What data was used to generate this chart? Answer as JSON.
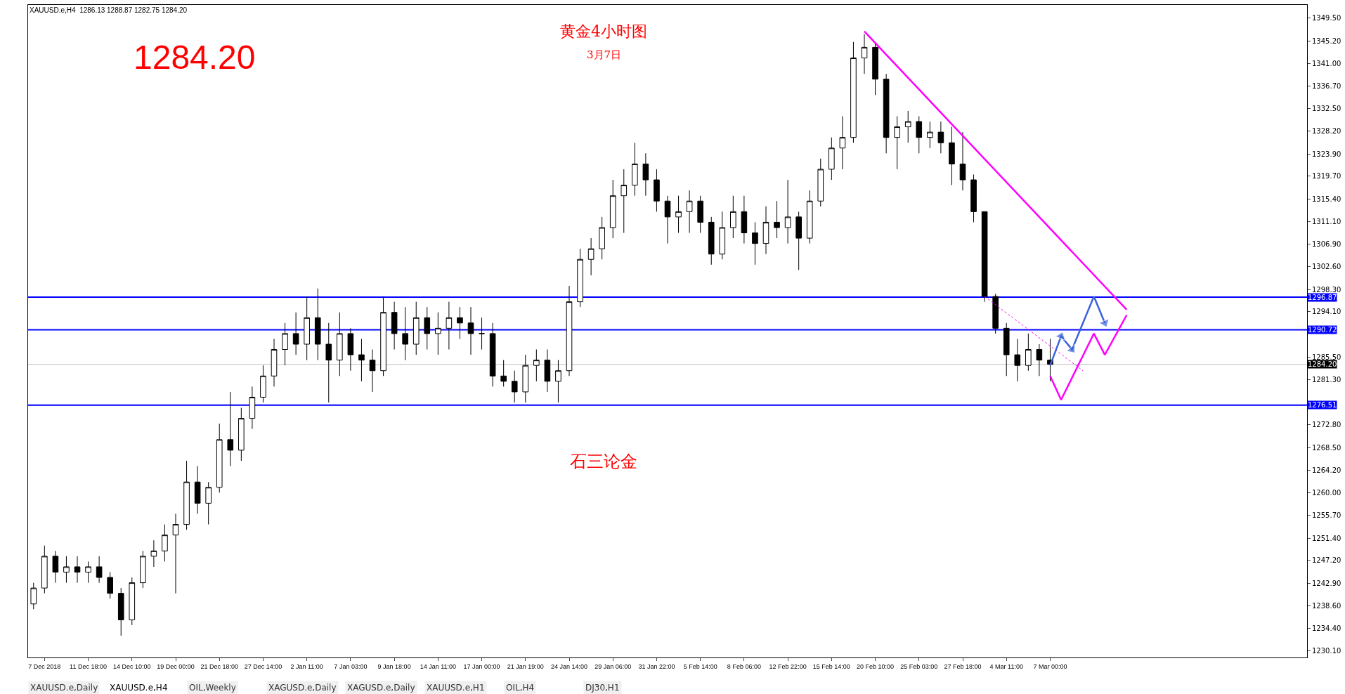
{
  "chart_data": {
    "type": "candlestick",
    "title": "黄金4小时图",
    "subtitle": "3月7日",
    "annotations": [
      "XAUUSD.e,H4  1286.13 1288.87 1282.75 1284.20",
      "1284.20",
      "石三论金",
      "XAUUSD.e,Daily",
      "XAUUSD.e,H4",
      "OIL,Weekly",
      "XAGUSD.e,Daily",
      "XAGUSD.e,Daily",
      "XAUUSD.e,H1",
      "OIL,H4",
      "DJ30,H1"
    ],
    "categories": [
      null,
      "7 Dec 2018",
      null,
      null,
      null,
      "11 Dec 18:00",
      null,
      null,
      null,
      "14 Dec 10:00",
      null,
      null,
      null,
      "19 Dec 00:00",
      null,
      null,
      null,
      "21 Dec 18:00",
      null,
      null,
      null,
      "27 Dec 14:00",
      null,
      null,
      null,
      "2 Jan 11:00",
      null,
      null,
      null,
      "7 Jan 03:00",
      null,
      null,
      null,
      "9 Jan 18:00",
      null,
      null,
      null,
      "14 Jan 11:00",
      null,
      null,
      null,
      "17 Jan 00:00",
      null,
      null,
      null,
      "21 Jan 19:00",
      null,
      null,
      null,
      "24 Jan 14:00",
      null,
      null,
      null,
      "29 Jan 06:00",
      null,
      null,
      null,
      "31 Jan 22:00",
      null,
      null,
      null,
      "5 Feb 14:00",
      null,
      null,
      null,
      "8 Feb 06:00",
      null,
      null,
      null,
      "12 Feb 22:00",
      null,
      null,
      null,
      "15 Feb 14:00",
      null,
      null,
      null,
      "20 Feb 10:00",
      null,
      null,
      null,
      "25 Feb 03:00",
      null,
      null,
      null,
      "27 Feb 18:00",
      null,
      null,
      null,
      "4 Mar 11:00",
      null,
      null,
      null,
      "7 Mar 00:00",
      null,
      null,
      null,
      null,
      null,
      null,
      null,
      null,
      null,
      null,
      null,
      null,
      null,
      null,
      null,
      null,
      null,
      null,
      null,
      null,
      null,
      null,
      null
    ],
    "ohlc": [
      [
        1239,
        1243,
        1238,
        1242
      ],
      [
        1242,
        1250,
        1241,
        1248
      ],
      [
        1248,
        1249,
        1243,
        1245
      ],
      [
        1245,
        1248,
        1243,
        1246
      ],
      [
        1246,
        1248,
        1243,
        1245
      ],
      [
        1245,
        1247,
        1243,
        1246
      ],
      [
        1246,
        1248,
        1243,
        1244
      ],
      [
        1244,
        1245,
        1240,
        1241
      ],
      [
        1241,
        1242,
        1233,
        1236
      ],
      [
        1236,
        1244,
        1235,
        1243
      ],
      [
        1243,
        1249,
        1242,
        1248
      ],
      [
        1248,
        1251,
        1246,
        1249
      ],
      [
        1249,
        1254,
        1247,
        1252
      ],
      [
        1252,
        1256,
        1241,
        1254
      ],
      [
        1254,
        1266,
        1253,
        1262
      ],
      [
        1262,
        1265,
        1256,
        1258
      ],
      [
        1258,
        1262,
        1254,
        1261
      ],
      [
        1261,
        1273,
        1260,
        1270
      ],
      [
        1270,
        1279,
        1265,
        1268
      ],
      [
        1268,
        1276,
        1266,
        1274
      ],
      [
        1274,
        1280,
        1272,
        1278
      ],
      [
        1278,
        1284,
        1277,
        1282
      ],
      [
        1282,
        1289,
        1280,
        1287
      ],
      [
        1287,
        1292,
        1284,
        1290
      ],
      [
        1290,
        1294,
        1286,
        1288
      ],
      [
        1288,
        1297,
        1285,
        1293
      ],
      [
        1293,
        1298.5,
        1285,
        1288
      ],
      [
        1288,
        1292,
        1277,
        1285
      ],
      [
        1285,
        1294,
        1282,
        1290
      ],
      [
        1290,
        1291,
        1283,
        1286
      ],
      [
        1286,
        1289,
        1281,
        1285
      ],
      [
        1285,
        1287,
        1279,
        1283
      ],
      [
        1283,
        1297,
        1282,
        1294
      ],
      [
        1294,
        1296,
        1287,
        1290
      ],
      [
        1290,
        1295,
        1285,
        1288
      ],
      [
        1288,
        1296,
        1286,
        1293
      ],
      [
        1293,
        1295,
        1287,
        1290
      ],
      [
        1290,
        1294,
        1286,
        1291
      ],
      [
        1291,
        1296,
        1287,
        1293
      ],
      [
        1293,
        1295,
        1289,
        1292
      ],
      [
        1292,
        1295,
        1286,
        1290
      ],
      [
        1290,
        1293,
        1287,
        1290
      ],
      [
        1290,
        1292,
        1280,
        1282
      ],
      [
        1282,
        1285,
        1280,
        1281
      ],
      [
        1281,
        1283,
        1277,
        1279
      ],
      [
        1279,
        1286,
        1277,
        1284
      ],
      [
        1284,
        1287,
        1281,
        1285
      ],
      [
        1285,
        1287,
        1279,
        1281
      ],
      [
        1281,
        1285,
        1277,
        1283
      ],
      [
        1283,
        1299,
        1282,
        1296
      ],
      [
        1296,
        1306,
        1295,
        1304
      ],
      [
        1304,
        1308,
        1301,
        1306
      ],
      [
        1306,
        1312,
        1304,
        1310
      ],
      [
        1310,
        1319,
        1308,
        1316
      ],
      [
        1316,
        1321,
        1309,
        1318
      ],
      [
        1318,
        1326,
        1316,
        1322
      ],
      [
        1322,
        1324,
        1316,
        1319
      ],
      [
        1319,
        1321,
        1313,
        1315
      ],
      [
        1315,
        1316,
        1307,
        1312
      ],
      [
        1312,
        1316,
        1309,
        1313
      ],
      [
        1313,
        1317,
        1309,
        1315
      ],
      [
        1315,
        1316,
        1309,
        1311
      ],
      [
        1311,
        1312,
        1303,
        1305
      ],
      [
        1305,
        1313,
        1304,
        1310
      ],
      [
        1310,
        1316,
        1308,
        1313
      ],
      [
        1313,
        1316,
        1307,
        1309
      ],
      [
        1309,
        1311,
        1303,
        1307
      ],
      [
        1307,
        1314,
        1305,
        1311
      ],
      [
        1311,
        1315,
        1308,
        1310
      ],
      [
        1310,
        1319,
        1307,
        1312
      ],
      [
        1312,
        1313,
        1302,
        1308
      ],
      [
        1308,
        1317,
        1307,
        1315
      ],
      [
        1315,
        1323,
        1314,
        1321
      ],
      [
        1321,
        1327,
        1319,
        1325
      ],
      [
        1325,
        1331,
        1321,
        1327
      ],
      [
        1327,
        1345,
        1326,
        1342
      ],
      [
        1342,
        1346.5,
        1339,
        1344
      ],
      [
        1344,
        1345,
        1335,
        1338
      ],
      [
        1338,
        1339,
        1324,
        1327
      ],
      [
        1327,
        1331,
        1321,
        1329
      ],
      [
        1329,
        1332,
        1326,
        1330
      ],
      [
        1330,
        1331,
        1324,
        1327
      ],
      [
        1327,
        1330,
        1325,
        1328
      ],
      [
        1328,
        1330,
        1324,
        1326
      ],
      [
        1326,
        1329,
        1318,
        1322
      ],
      [
        1322,
        1328,
        1317,
        1319
      ],
      [
        1319,
        1320,
        1311,
        1313
      ],
      [
        1313,
        1313,
        1296,
        1297
      ],
      [
        1297,
        1297.5,
        1290,
        1291
      ],
      [
        1291,
        1292,
        1282,
        1286
      ],
      [
        1286,
        1289,
        1281,
        1284
      ],
      [
        1284,
        1290,
        1283,
        1287
      ],
      [
        1287,
        1288,
        1282,
        1285
      ],
      [
        1285,
        1289,
        1281,
        1284.2
      ],
      null,
      null,
      null,
      null,
      null,
      null,
      null,
      null,
      null,
      null,
      null,
      null,
      null,
      null,
      null,
      null,
      null,
      null,
      null,
      null,
      null,
      null,
      null
    ],
    "series": [
      {
        "type": "line",
        "color": "#ff00ff",
        "marker": "none",
        "line_style": "solid",
        "values": [
          null,
          null,
          null,
          null,
          null,
          null,
          null,
          null,
          null,
          null,
          null,
          null,
          null,
          null,
          null,
          null,
          null,
          null,
          null,
          null,
          null,
          null,
          null,
          null,
          null,
          null,
          null,
          null,
          null,
          null,
          null,
          null,
          null,
          null,
          null,
          null,
          null,
          null,
          null,
          null,
          null,
          null,
          null,
          null,
          null,
          null,
          null,
          null,
          null,
          null,
          null,
          null,
          null,
          null,
          null,
          null,
          null,
          null,
          null,
          null,
          null,
          null,
          null,
          null,
          null,
          null,
          null,
          null,
          null,
          null,
          null,
          null,
          null,
          null,
          null,
          null,
          1347,
          null,
          null,
          null,
          null,
          null,
          null,
          null,
          null,
          null,
          null,
          null,
          null,
          null,
          null,
          null,
          null,
          null,
          null,
          null,
          null,
          null,
          null,
          null,
          1294.5,
          null,
          null,
          null,
          null,
          null,
          null,
          null,
          null,
          null,
          null,
          null,
          null,
          null,
          null,
          null,
          null
        ]
      },
      {
        "type": "line",
        "color": "#ff00ff",
        "marker": "none",
        "line_style": "dotted",
        "values": [
          null,
          null,
          null,
          null,
          null,
          null,
          null,
          null,
          null,
          null,
          null,
          null,
          null,
          null,
          null,
          null,
          null,
          null,
          null,
          null,
          null,
          null,
          null,
          null,
          null,
          null,
          null,
          null,
          null,
          null,
          null,
          null,
          null,
          null,
          null,
          null,
          null,
          null,
          null,
          null,
          null,
          null,
          null,
          null,
          null,
          null,
          null,
          null,
          null,
          null,
          null,
          null,
          null,
          null,
          null,
          null,
          null,
          null,
          null,
          null,
          null,
          null,
          null,
          null,
          null,
          null,
          null,
          null,
          null,
          null,
          null,
          null,
          null,
          null,
          null,
          null,
          null,
          null,
          null,
          null,
          null,
          null,
          null,
          null,
          null,
          null,
          null,
          1297,
          null,
          null,
          null,
          null,
          null,
          null,
          null,
          null,
          1283,
          null,
          null,
          null,
          null,
          null,
          null,
          null,
          null,
          null,
          null,
          null,
          null,
          null,
          null,
          null,
          null,
          null,
          null,
          null,
          null
        ]
      },
      {
        "type": "line",
        "color": "#3b63dd",
        "marker": "triangle",
        "line_style": "solid",
        "values": [
          null,
          null,
          null,
          null,
          null,
          null,
          null,
          null,
          null,
          null,
          null,
          null,
          null,
          null,
          null,
          null,
          null,
          null,
          null,
          null,
          null,
          null,
          null,
          null,
          null,
          null,
          null,
          null,
          null,
          null,
          null,
          null,
          null,
          null,
          null,
          null,
          null,
          null,
          null,
          null,
          null,
          null,
          null,
          null,
          null,
          null,
          null,
          null,
          null,
          null,
          null,
          null,
          null,
          null,
          null,
          null,
          null,
          null,
          null,
          null,
          null,
          null,
          null,
          null,
          null,
          null,
          null,
          null,
          null,
          null,
          null,
          null,
          null,
          null,
          null,
          null,
          null,
          null,
          null,
          null,
          null,
          null,
          null,
          null,
          null,
          null,
          null,
          null,
          null,
          null,
          null,
          null,
          null,
          1284,
          1289.5,
          1287,
          null,
          1297,
          1292,
          null,
          null,
          null,
          null,
          null,
          null,
          null,
          null,
          null,
          null,
          null,
          null,
          null,
          null,
          null,
          null,
          null,
          null
        ]
      },
      {
        "type": "line",
        "color": "#ff00ff",
        "marker": "none",
        "line_style": "solid",
        "values": [
          null,
          null,
          null,
          null,
          null,
          null,
          null,
          null,
          null,
          null,
          null,
          null,
          null,
          null,
          null,
          null,
          null,
          null,
          null,
          null,
          null,
          null,
          null,
          null,
          null,
          null,
          null,
          null,
          null,
          null,
          null,
          null,
          null,
          null,
          null,
          null,
          null,
          null,
          null,
          null,
          null,
          null,
          null,
          null,
          null,
          null,
          null,
          null,
          null,
          null,
          null,
          null,
          null,
          null,
          null,
          null,
          null,
          null,
          null,
          null,
          null,
          null,
          null,
          null,
          null,
          null,
          null,
          null,
          null,
          null,
          null,
          null,
          null,
          null,
          null,
          null,
          null,
          null,
          null,
          null,
          null,
          null,
          null,
          null,
          null,
          null,
          null,
          null,
          null,
          null,
          null,
          null,
          null,
          1282,
          1277.5,
          null,
          null,
          1290,
          1286,
          null,
          1293.5,
          null,
          null,
          null,
          null,
          null,
          null,
          null,
          null,
          null,
          null,
          null,
          null,
          null,
          null,
          null,
          null
        ]
      }
    ],
    "ref_lines": [
      {
        "axis": "y",
        "value": 1296.87,
        "label": "1296.87",
        "color": "#0000ff"
      },
      {
        "axis": "y",
        "value": 1290.72,
        "label": "1290.72",
        "color": "#0000ff"
      },
      {
        "axis": "y",
        "value": 1284.2,
        "label": "1284.20",
        "color": "#c0c0c0"
      },
      {
        "axis": "y",
        "value": 1276.51,
        "label": "1276.51",
        "color": "#0000ff"
      }
    ],
    "ylim": [
      1228.9,
      1352.0
    ],
    "yticks": [
      {
        "value": 1230.1,
        "label": "1230.10"
      },
      {
        "value": 1234.4,
        "label": "1234.40"
      },
      {
        "value": 1238.6,
        "label": "1238.60"
      },
      {
        "value": 1242.9,
        "label": "1242.90"
      },
      {
        "value": 1247.2,
        "label": "1247.20"
      },
      {
        "value": 1251.4,
        "label": "1251.40"
      },
      {
        "value": 1255.7,
        "label": "1255.70"
      },
      {
        "value": 1260.0,
        "label": "1260.00"
      },
      {
        "value": 1264.2,
        "label": "1264.20"
      },
      {
        "value": 1268.5,
        "label": "1268.50"
      },
      {
        "value": 1272.8,
        "label": "1272.80"
      },
      {
        "value": 1281.3,
        "label": "1281.30"
      },
      {
        "value": 1285.5,
        "label": "1285.50"
      },
      {
        "value": 1294.1,
        "label": "1294.10"
      },
      {
        "value": 1298.3,
        "label": "1298.30"
      },
      {
        "value": 1302.6,
        "label": "1302.60"
      },
      {
        "value": 1306.9,
        "label": "1306.90"
      },
      {
        "value": 1311.1,
        "label": "1311.10"
      },
      {
        "value": 1315.4,
        "label": "1315.40"
      },
      {
        "value": 1319.7,
        "label": "1319.70"
      },
      {
        "value": 1323.9,
        "label": "1323.90"
      },
      {
        "value": 1328.2,
        "label": "1328.20"
      },
      {
        "value": 1332.5,
        "label": "1332.50"
      },
      {
        "value": 1336.7,
        "label": "1336.70"
      },
      {
        "value": 1341.0,
        "label": "1341.00"
      },
      {
        "value": 1345.2,
        "label": "1345.20"
      },
      {
        "value": 1349.5,
        "label": "1349.50"
      }
    ],
    "grid": false
  }
}
